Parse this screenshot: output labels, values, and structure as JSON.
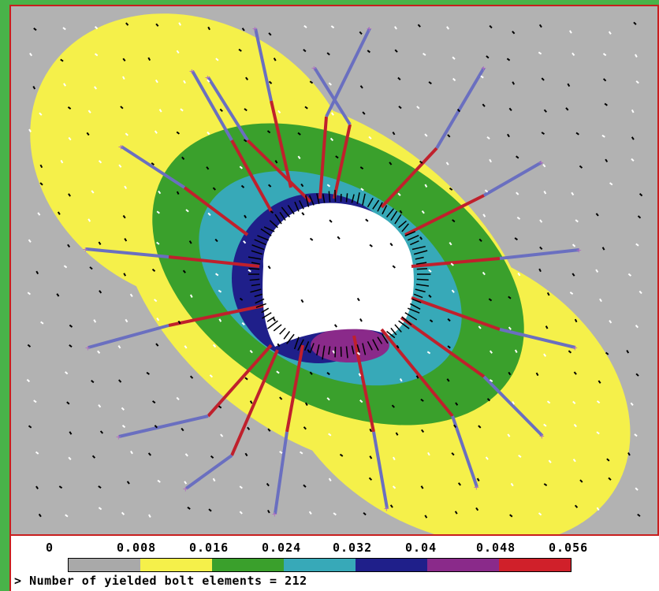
{
  "legend": {
    "ticks": [
      "0",
      "0.008",
      "0.016",
      "0.024",
      "0.032",
      "0.04",
      "0.048",
      "0.056"
    ],
    "colors": [
      "#a9a9a9",
      "#f5f04a",
      "#3aa02c",
      "#37a9b8",
      "#1f1f8a",
      "#8a2a8a",
      "#d0202a"
    ],
    "color_names": [
      "gray",
      "yellow",
      "green",
      "cyan",
      "dark-blue",
      "purple",
      "red"
    ]
  },
  "status": {
    "prompt": ">",
    "message": "Number of yielded bolt elements = 212"
  },
  "colors": {
    "background": "#b2b2b2",
    "frame": "#3db33d",
    "border": "#c81e1e",
    "bolt_yielded": "#c0202c",
    "bolt_elastic": "#6a6fc0",
    "opening": "#ffffff"
  }
}
